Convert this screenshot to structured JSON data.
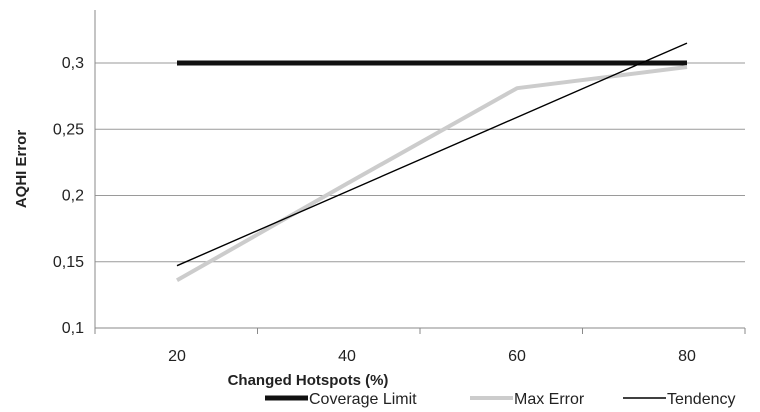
{
  "chart_data": {
    "type": "line",
    "title": "",
    "xlabel": "Changed Hotspots (%)",
    "ylabel": "AQHI Error",
    "categories": [
      "20",
      "40",
      "60",
      "80"
    ],
    "x": [
      20,
      40,
      60,
      80
    ],
    "ylim": [
      0.1,
      0.3
    ],
    "yticks": [
      0.1,
      0.15,
      0.2,
      0.25,
      0.3
    ],
    "ytick_labels": [
      "0,1",
      "0,15",
      "0,2",
      "0,25",
      "0,3"
    ],
    "grid": "horizontal",
    "legend_position": "bottom",
    "series": [
      {
        "name": "Coverage Limit",
        "x": [
          20,
          80
        ],
        "values": [
          0.3,
          0.3
        ],
        "color": "#111111",
        "style": "thick"
      },
      {
        "name": "Max Error",
        "x": [
          20,
          40,
          60,
          80
        ],
        "values": [
          0.136,
          0.209,
          0.281,
          0.297
        ],
        "color": "#cccccc",
        "style": "medium"
      },
      {
        "name": "Tendency",
        "x": [
          20,
          80
        ],
        "values": [
          0.147,
          0.315
        ],
        "color": "#000000",
        "style": "thin"
      }
    ]
  }
}
